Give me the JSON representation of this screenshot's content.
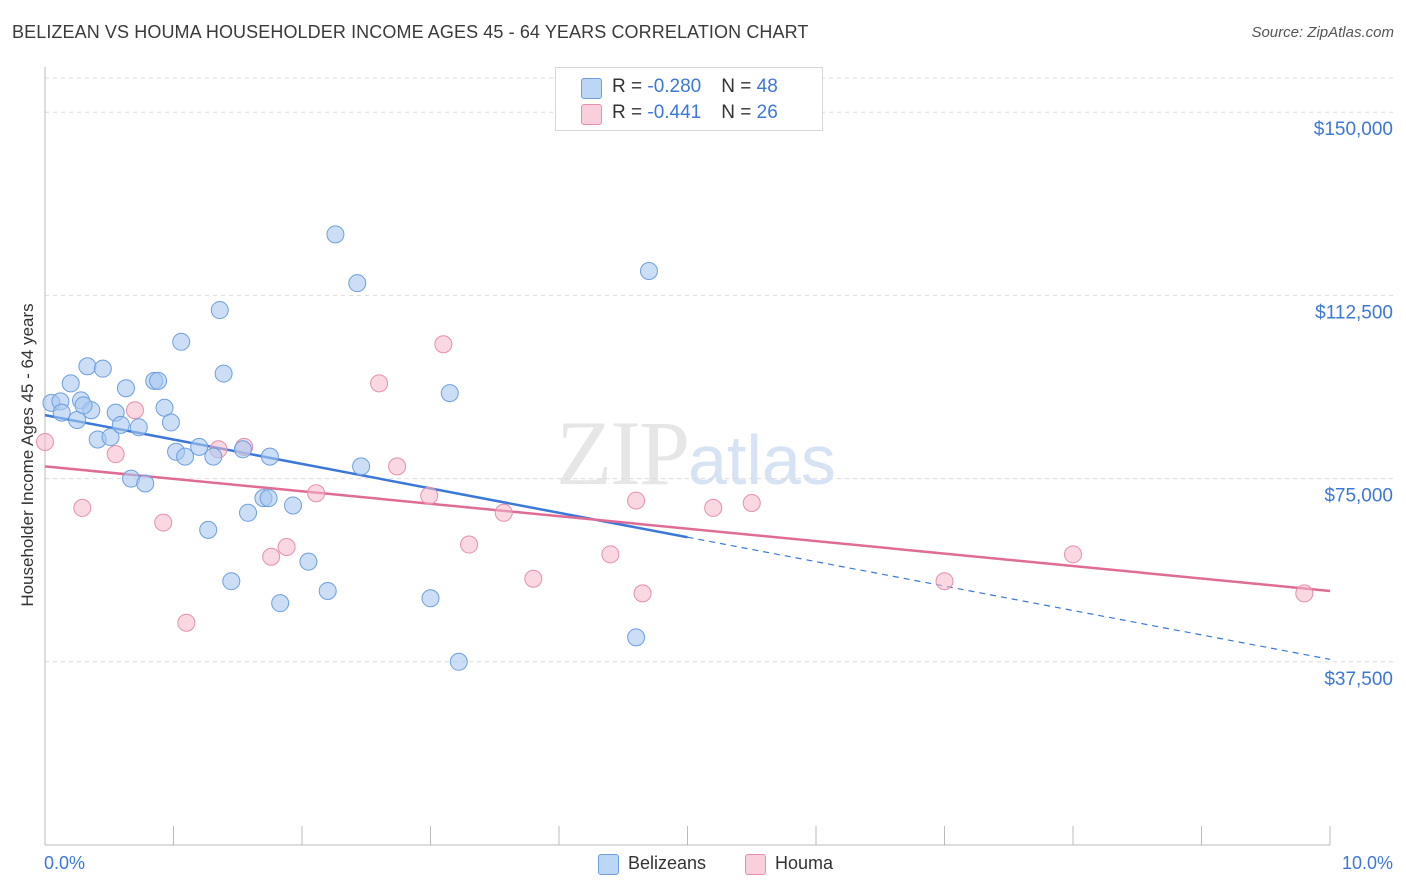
{
  "header": {
    "title": "BELIZEAN VS HOUMA HOUSEHOLDER INCOME AGES 45 - 64 YEARS CORRELATION CHART",
    "source": "Source: ZipAtlas.com"
  },
  "watermark": {
    "zip": "ZIP",
    "atlas": "atlas"
  },
  "legend": {
    "rows": [
      {
        "r_label": "R = ",
        "r_value": "-0.280",
        "n_label": "N = ",
        "n_value": "48",
        "color": "#a8c8f0"
      },
      {
        "r_label": "R = ",
        "r_value": "-0.441",
        "n_label": "N = ",
        "n_value": "26",
        "color": "#f5b8ca"
      }
    ]
  },
  "bottom_legend": {
    "series1": "Belizeans",
    "series2": "Houma"
  },
  "chart_data": {
    "type": "scatter",
    "title": "BELIZEAN VS HOUMA HOUSEHOLDER INCOME AGES 45 - 64 YEARS CORRELATION CHART",
    "xlabel": "",
    "ylabel": "Householder Income Ages 45 - 64 years",
    "xlim": [
      0,
      10
    ],
    "ylim": [
      0,
      157000
    ],
    "y_ticks": [
      37500,
      75000,
      112500,
      150000
    ],
    "y_tick_labels": [
      "$37,500",
      "$75,000",
      "$112,500",
      "$150,000"
    ],
    "x_tick_labels": [
      "0.0%",
      "10.0%"
    ],
    "grid": true,
    "colors": {
      "belizeans": "#3b78d8",
      "belizeans_fill": "#a8c8f0",
      "houma": "#e06b95",
      "houma_fill": "#f5b8ca",
      "axis_text": "#3b78d8"
    },
    "series": [
      {
        "name": "Belizeans",
        "points": [
          [
            0.05,
            90500
          ],
          [
            0.12,
            90800
          ],
          [
            0.13,
            88500
          ],
          [
            0.2,
            94500
          ],
          [
            0.25,
            87000
          ],
          [
            0.28,
            91000
          ],
          [
            0.33,
            98000
          ],
          [
            0.36,
            89000
          ],
          [
            0.41,
            83000
          ],
          [
            0.45,
            97500
          ],
          [
            0.51,
            83500
          ],
          [
            0.55,
            88500
          ],
          [
            0.59,
            86000
          ],
          [
            0.63,
            93500
          ],
          [
            0.67,
            75000
          ],
          [
            0.73,
            85500
          ],
          [
            0.78,
            74000
          ],
          [
            0.85,
            95000
          ],
          [
            0.88,
            95000
          ],
          [
            0.93,
            89500
          ],
          [
            0.98,
            86500
          ],
          [
            1.02,
            80500
          ],
          [
            1.06,
            103000
          ],
          [
            1.09,
            79500
          ],
          [
            1.2,
            81500
          ],
          [
            1.27,
            64500
          ],
          [
            1.31,
            79500
          ],
          [
            1.36,
            109500
          ],
          [
            1.39,
            96500
          ],
          [
            1.45,
            54000
          ],
          [
            1.54,
            81000
          ],
          [
            1.58,
            68000
          ],
          [
            1.7,
            71000
          ],
          [
            1.74,
            71000
          ],
          [
            1.75,
            79500
          ],
          [
            1.83,
            49500
          ],
          [
            1.93,
            69500
          ],
          [
            2.05,
            58000
          ],
          [
            2.2,
            52000
          ],
          [
            2.26,
            125000
          ],
          [
            2.43,
            115000
          ],
          [
            2.46,
            77500
          ],
          [
            3.0,
            50500
          ],
          [
            3.15,
            92500
          ],
          [
            3.22,
            37500
          ],
          [
            4.6,
            42500
          ],
          [
            4.7,
            117500
          ],
          [
            0.3,
            90000
          ]
        ],
        "trend": {
          "x": [
            0,
            5
          ],
          "y": [
            88000,
            63000
          ],
          "dashed_to": [
            10,
            38000
          ]
        }
      },
      {
        "name": "Houma",
        "points": [
          [
            0.0,
            82500
          ],
          [
            0.29,
            69000
          ],
          [
            0.55,
            80000
          ],
          [
            0.7,
            89000
          ],
          [
            0.92,
            66000
          ],
          [
            1.1,
            45500
          ],
          [
            1.35,
            81000
          ],
          [
            1.55,
            81500
          ],
          [
            1.76,
            59000
          ],
          [
            1.88,
            61000
          ],
          [
            2.11,
            72000
          ],
          [
            2.6,
            94500
          ],
          [
            2.74,
            77500
          ],
          [
            2.99,
            71500
          ],
          [
            3.1,
            102500
          ],
          [
            3.3,
            61500
          ],
          [
            3.57,
            68000
          ],
          [
            3.8,
            54500
          ],
          [
            4.4,
            59500
          ],
          [
            4.6,
            70500
          ],
          [
            4.65,
            51500
          ],
          [
            5.2,
            69000
          ],
          [
            5.5,
            70000
          ],
          [
            7.0,
            54000
          ],
          [
            8.0,
            59500
          ],
          [
            9.8,
            51500
          ]
        ],
        "trend": {
          "x": [
            0,
            10
          ],
          "y": [
            77500,
            52000
          ]
        }
      }
    ]
  }
}
